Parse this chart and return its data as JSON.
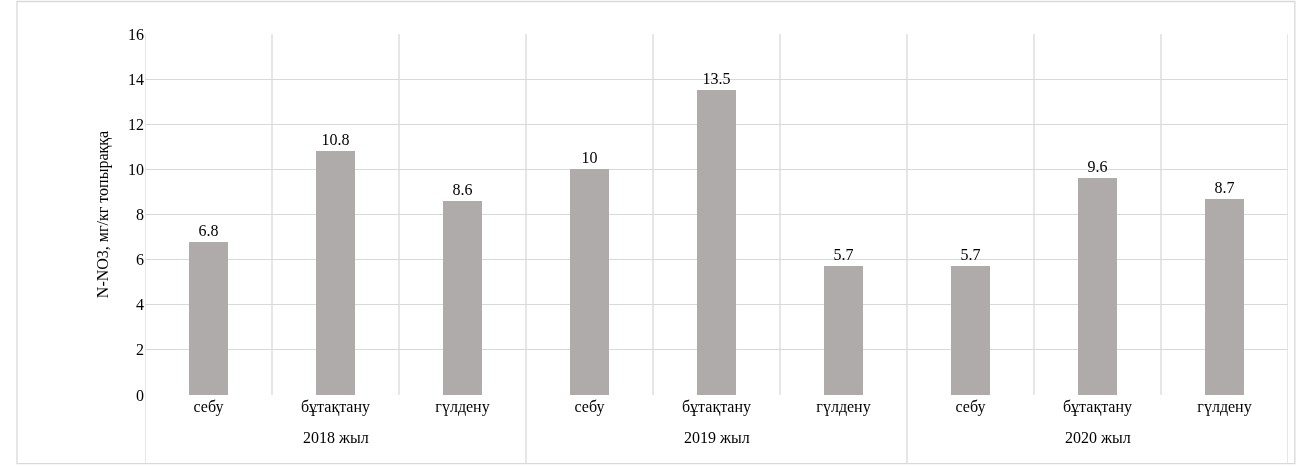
{
  "chart_data": {
    "type": "bar",
    "ylabel": "N-NO3, мг/кг топыраққа",
    "categories": [
      "себу",
      "бұтақтану",
      "гүлдену",
      "себу",
      "бұтақтану",
      "гүлдену",
      "себу",
      "бұтақтану",
      "гүлдену"
    ],
    "values": [
      6.8,
      10.8,
      8.6,
      10,
      13.5,
      5.7,
      5.7,
      9.6,
      8.7
    ],
    "color": "#afabab",
    "ylim": [
      0,
      16
    ],
    "yticks": [
      0,
      2,
      4,
      6,
      8,
      10,
      12,
      14,
      16
    ],
    "grid": true,
    "data_labels": true,
    "annotations": [
      "2018 жыл",
      "2019 жыл",
      "2020 жыл"
    ]
  }
}
